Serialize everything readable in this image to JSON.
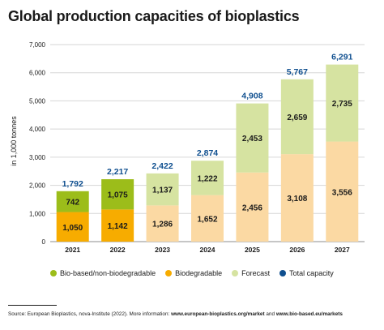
{
  "chart_data": {
    "type": "bar",
    "stacked": true,
    "title": "Global production capacities of bioplastics",
    "xlabel": "",
    "ylabel": "in 1,000 tonnes",
    "ylim": [
      0,
      7000
    ],
    "yticks": [
      0,
      1000,
      2000,
      3000,
      4000,
      5000,
      6000,
      7000
    ],
    "ytick_labels": [
      "0",
      "1,000",
      "2,000",
      "3,000",
      "4,000",
      "5,000",
      "6,000",
      "7,000"
    ],
    "grid": true,
    "legend_position": "bottom",
    "categories": [
      "2021",
      "2022",
      "2023",
      "2024",
      "2025",
      "2026",
      "2027"
    ],
    "series": [
      {
        "name": "Biodegradable",
        "values": [
          1050,
          1142,
          1286,
          1652,
          2456,
          3108,
          3556
        ],
        "labels": [
          "1,050",
          "1,142",
          "1,286",
          "1,652",
          "2,456",
          "3,108",
          "3,556"
        ]
      },
      {
        "name": "Bio-based/non-biodegradable",
        "values": [
          742,
          1075,
          1137,
          1222,
          2453,
          2659,
          2735
        ],
        "labels": [
          "742",
          "1,075",
          "1,137",
          "1,222",
          "2,453",
          "2,659",
          "2,735"
        ]
      }
    ],
    "totals": {
      "name": "Total capacity",
      "values": [
        1792,
        2217,
        2422,
        2874,
        4908,
        5767,
        6291
      ],
      "labels": [
        "1,792",
        "2,217",
        "2,422",
        "2,874",
        "4,908",
        "5,767",
        "6,291"
      ]
    },
    "forecast_from_index": 2,
    "colors": {
      "bio_based": "#9cbd1a",
      "biodegradable": "#f7ac00",
      "forecast_bio_based": "#d6e3a1",
      "forecast_biodegradable": "#fbd9a3",
      "total": "#0f4f8f",
      "grid": "#d6d6d6"
    },
    "legend": [
      {
        "label": "Bio-based/non-biodegradable",
        "color": "#9cbd1a"
      },
      {
        "label": "Biodegradable",
        "color": "#f7ac00"
      },
      {
        "label": "Forecast",
        "color": "#d6e3a1"
      },
      {
        "label": "Total capacity",
        "color": "#0f4f8f"
      }
    ]
  },
  "source": {
    "prefix": "Source: European Bioplastics, nova-Institute (2022). More information: ",
    "link1": "www.european-bioplastics.org/market",
    "middle": " and ",
    "link2": "www.bio-based.eu/markets"
  }
}
